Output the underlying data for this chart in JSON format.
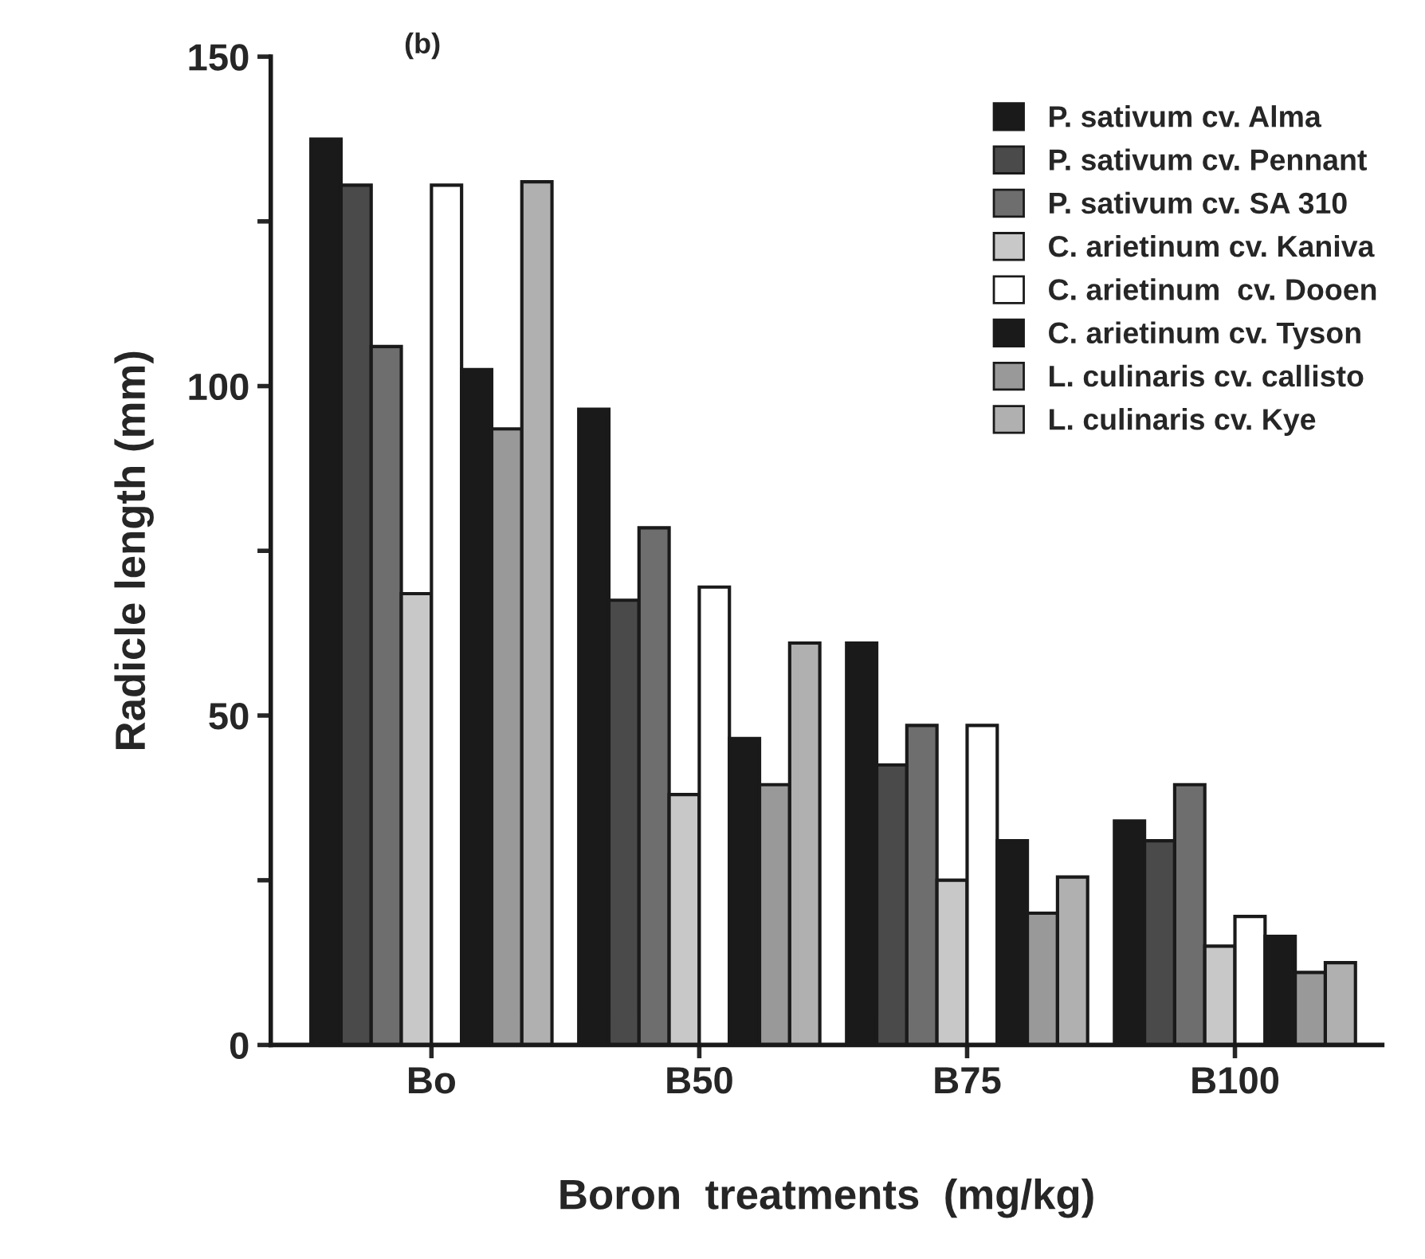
{
  "chart_data": {
    "type": "bar",
    "title": "(b)",
    "xlabel": "Boron  treatments  (mg/kg)",
    "ylabel": "Radicle length (mm)",
    "categories": [
      "Bo",
      "B50",
      "B75",
      "B100"
    ],
    "series": [
      {
        "name": "P. sativum cv. Alma",
        "color": "#1a1a1a",
        "values": [
          137.5,
          96.5,
          61,
          34
        ]
      },
      {
        "name": "P. sativum cv. Pennant",
        "color": "#4a4a4a",
        "values": [
          130.5,
          67.5,
          42.5,
          31
        ]
      },
      {
        "name": "P. sativum cv. SA 310",
        "color": "#6e6e6e",
        "values": [
          106,
          78.5,
          48.5,
          39.5
        ]
      },
      {
        "name": "C. arietinum cv. Kaniva",
        "color": "#c8c8c8",
        "values": [
          68.5,
          38,
          25,
          15
        ]
      },
      {
        "name": "C. arietinum  cv. Dooen",
        "color": "#ffffff",
        "values": [
          130.5,
          69.5,
          48.5,
          19.5
        ]
      },
      {
        "name": "C. arietinum cv. Tyson",
        "color": "#1a1a1a",
        "values": [
          102.5,
          46.5,
          31,
          16.5
        ]
      },
      {
        "name": "L. culinaris cv. callisto",
        "color": "#999999",
        "values": [
          93.5,
          39.5,
          20,
          11
        ]
      },
      {
        "name": "L. culinaris cv. Kye",
        "color": "#b0b0b0",
        "values": [
          131,
          61,
          25.5,
          12.5
        ]
      }
    ],
    "ylim": [
      0,
      150
    ],
    "yticks": [
      0,
      {
        "value": 25,
        "label": null
      },
      50,
      {
        "value": 75,
        "label": null
      },
      100,
      {
        "value": 125,
        "label": null
      },
      150
    ],
    "grid": false,
    "legend": "top right"
  }
}
